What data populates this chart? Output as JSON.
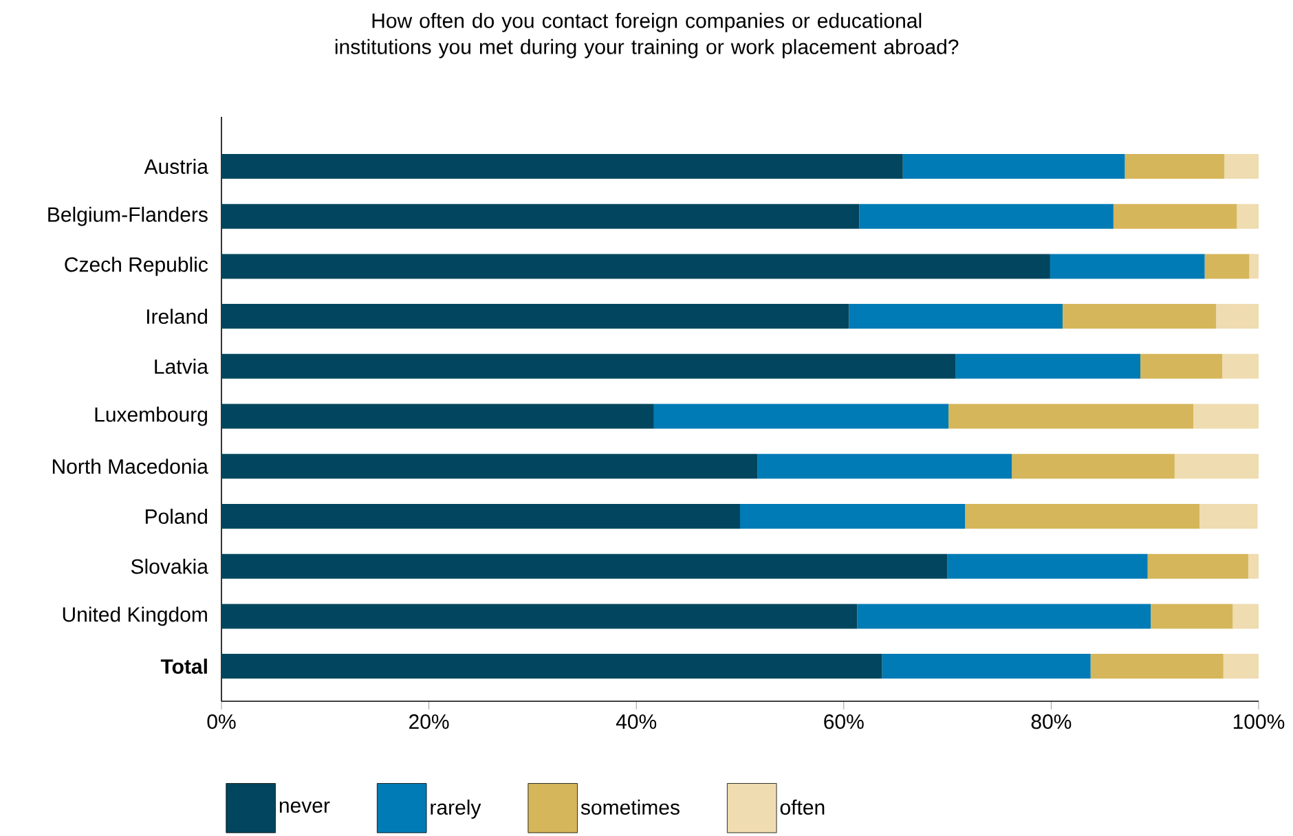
{
  "chart_data": {
    "type": "bar",
    "orientation": "horizontal",
    "stacked": true,
    "title": "How often do you contact foreign companies or educational institutions you met during your training or work placement abroad?",
    "categories": [
      "Austria",
      "Belgium-Flanders",
      "Czech Republic",
      "Ireland",
      "Latvia",
      "Luxembourg",
      "North Macedonia",
      "Poland",
      "Slovakia",
      "United Kingdom",
      "**Total**"
    ],
    "series": [
      {
        "name": "never",
        "color": "#01465e",
        "values": [
          65.7,
          61.5,
          79.9,
          60.5,
          70.8,
          41.7,
          51.7,
          50.0,
          70.0,
          61.3,
          63.7
        ]
      },
      {
        "name": "rarely",
        "color": "#007bb5",
        "values": [
          21.4,
          24.5,
          14.9,
          20.6,
          17.8,
          28.4,
          24.5,
          21.7,
          19.3,
          28.3,
          20.1
        ]
      },
      {
        "name": "sometimes",
        "color": "#d6b65a",
        "values": [
          9.6,
          11.9,
          4.3,
          14.8,
          7.9,
          23.6,
          15.7,
          22.6,
          9.7,
          7.9,
          12.8
        ]
      },
      {
        "name": "often",
        "color": "#efdcb0",
        "values": [
          3.3,
          2.1,
          0.9,
          4.1,
          3.5,
          6.3,
          8.1,
          5.6,
          1.0,
          2.5,
          3.4
        ]
      }
    ],
    "xlim": [
      0,
      100
    ],
    "xticks": [
      {
        "value": 0,
        "label": "0%"
      },
      {
        "value": 20,
        "label": "20%"
      },
      {
        "value": 40,
        "label": "40%"
      },
      {
        "value": 60,
        "label": "60%"
      },
      {
        "value": 80,
        "label": "80%"
      },
      {
        "value": 100,
        "label": "100%"
      }
    ],
    "grid": false,
    "legend": "bottom"
  }
}
